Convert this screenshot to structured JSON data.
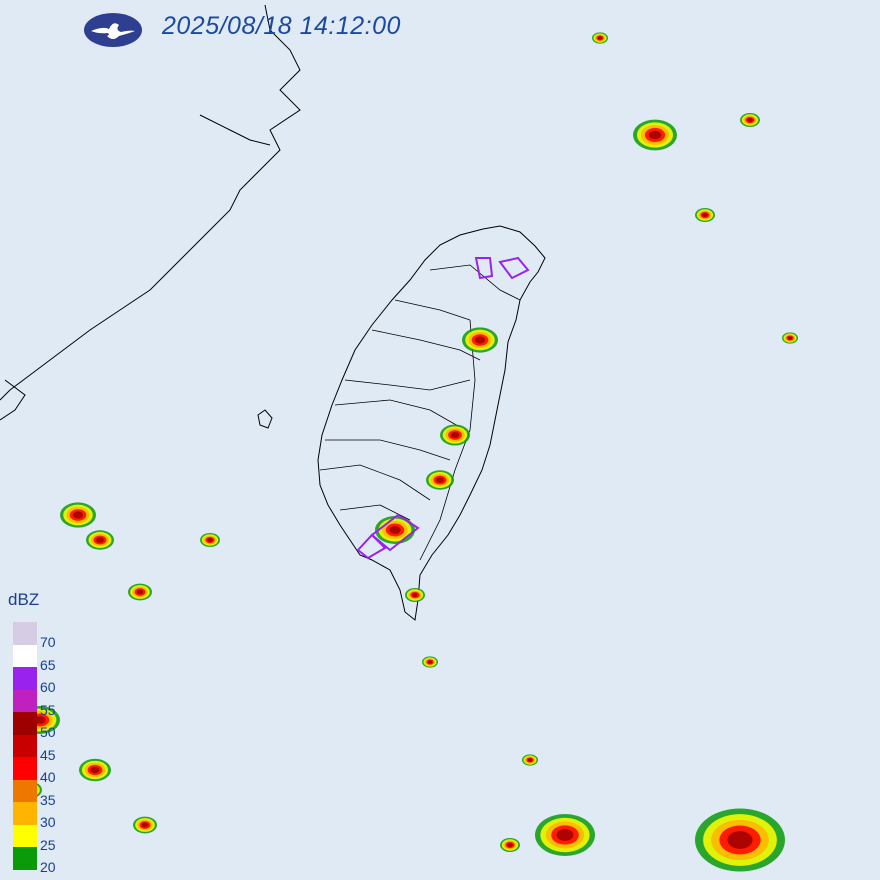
{
  "header": {
    "timestamp": "2025/08/18 14:12:00",
    "logo_icon": "cwa-cloud-logo"
  },
  "legend": {
    "unit": "dBZ",
    "bands": [
      {
        "label": "70",
        "color": "#d6cde4"
      },
      {
        "label": "65",
        "color": "#ffffff"
      },
      {
        "label": "60",
        "color": "#9a22ee"
      },
      {
        "label": "55",
        "color": "#c020c0"
      },
      {
        "label": "50",
        "color": "#9e0000"
      },
      {
        "label": "45",
        "color": "#c80000"
      },
      {
        "label": "40",
        "color": "#ff0000"
      },
      {
        "label": "35",
        "color": "#ee7700"
      },
      {
        "label": "30",
        "color": "#ffb400"
      },
      {
        "label": "25",
        "color": "#ffff00"
      },
      {
        "label": "20",
        "color": "#0a9a0a"
      }
    ]
  },
  "map": {
    "background": "#dfeaf5",
    "coastline_color": "#000000",
    "warning_outline_color": "#9a22ee"
  }
}
